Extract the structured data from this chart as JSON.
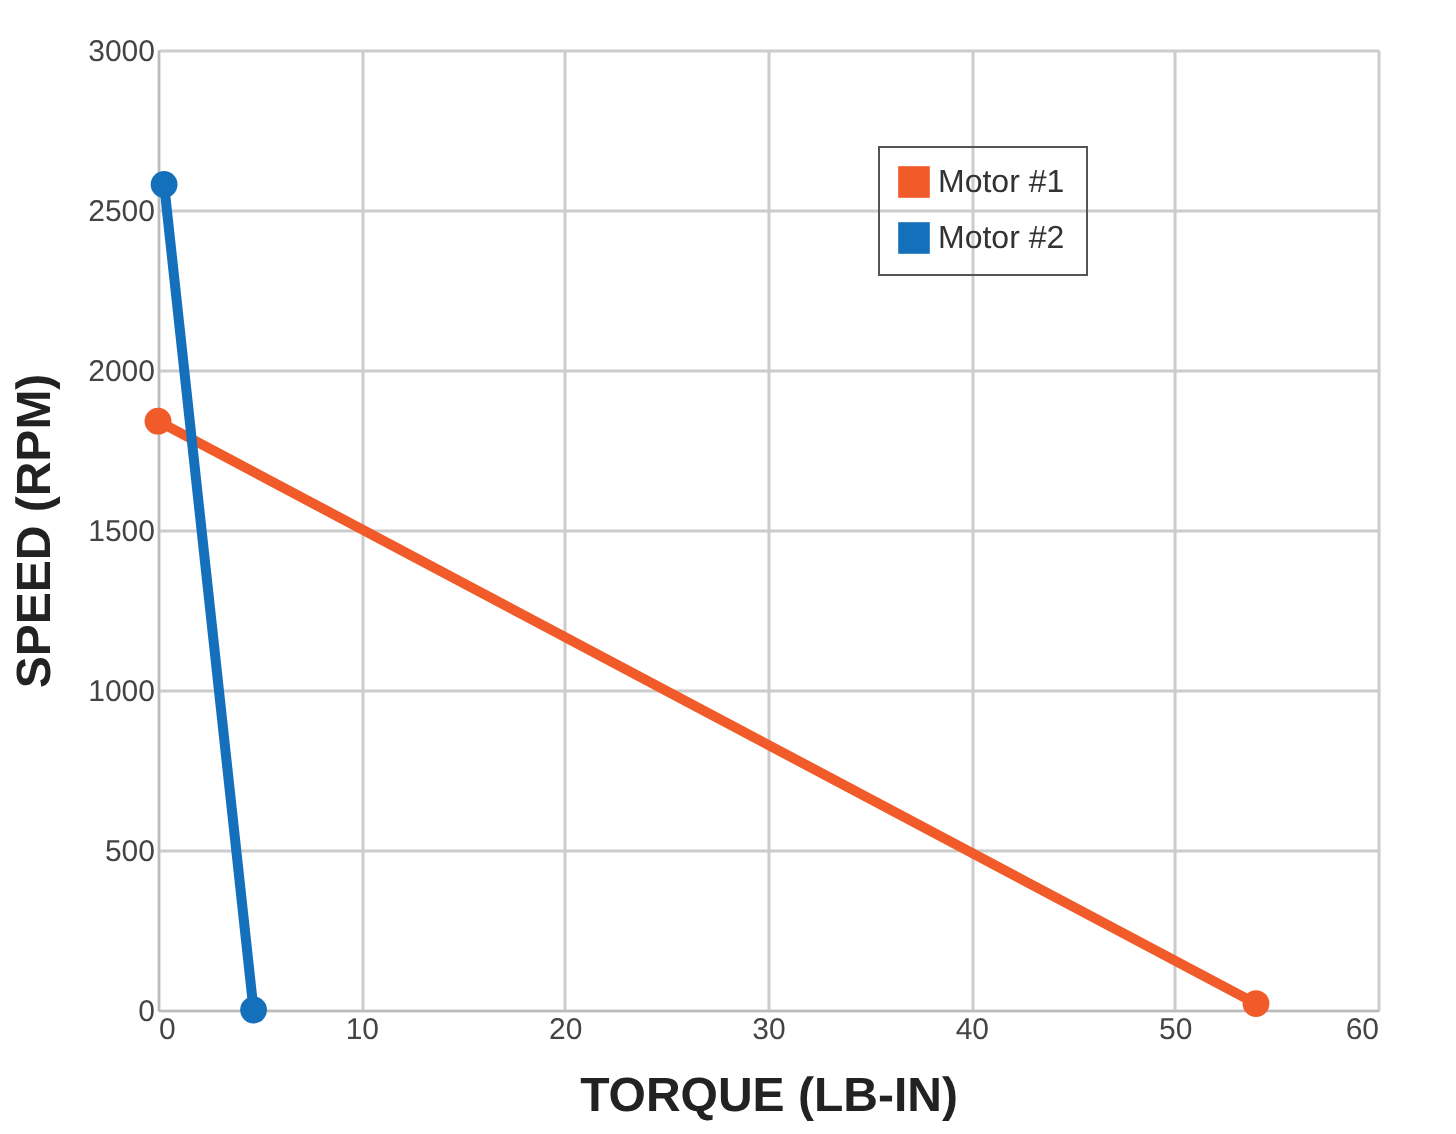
{
  "chart_data": {
    "type": "line",
    "xlabel": "TORQUE (LB-IN)",
    "ylabel": "SPEED (RPM)",
    "series": [
      {
        "name": "Motor #1",
        "color": "#f15a29",
        "x": [
          0,
          54
        ],
        "values": [
          1840,
          20
        ]
      },
      {
        "name": "Motor #2",
        "color": "#1570bc",
        "x": [
          0.3,
          4.7
        ],
        "values": [
          2580,
          0
        ]
      }
    ],
    "xlim": [
      0,
      60
    ],
    "xticks": [
      0,
      10,
      20,
      30,
      40,
      50,
      60
    ],
    "ylim": [
      0,
      3000
    ],
    "yticks": [
      0,
      500,
      1000,
      1500,
      2000,
      2500,
      3000
    ],
    "grid": true,
    "legend": "top right",
    "marker": "circle",
    "line_style": "solid"
  }
}
